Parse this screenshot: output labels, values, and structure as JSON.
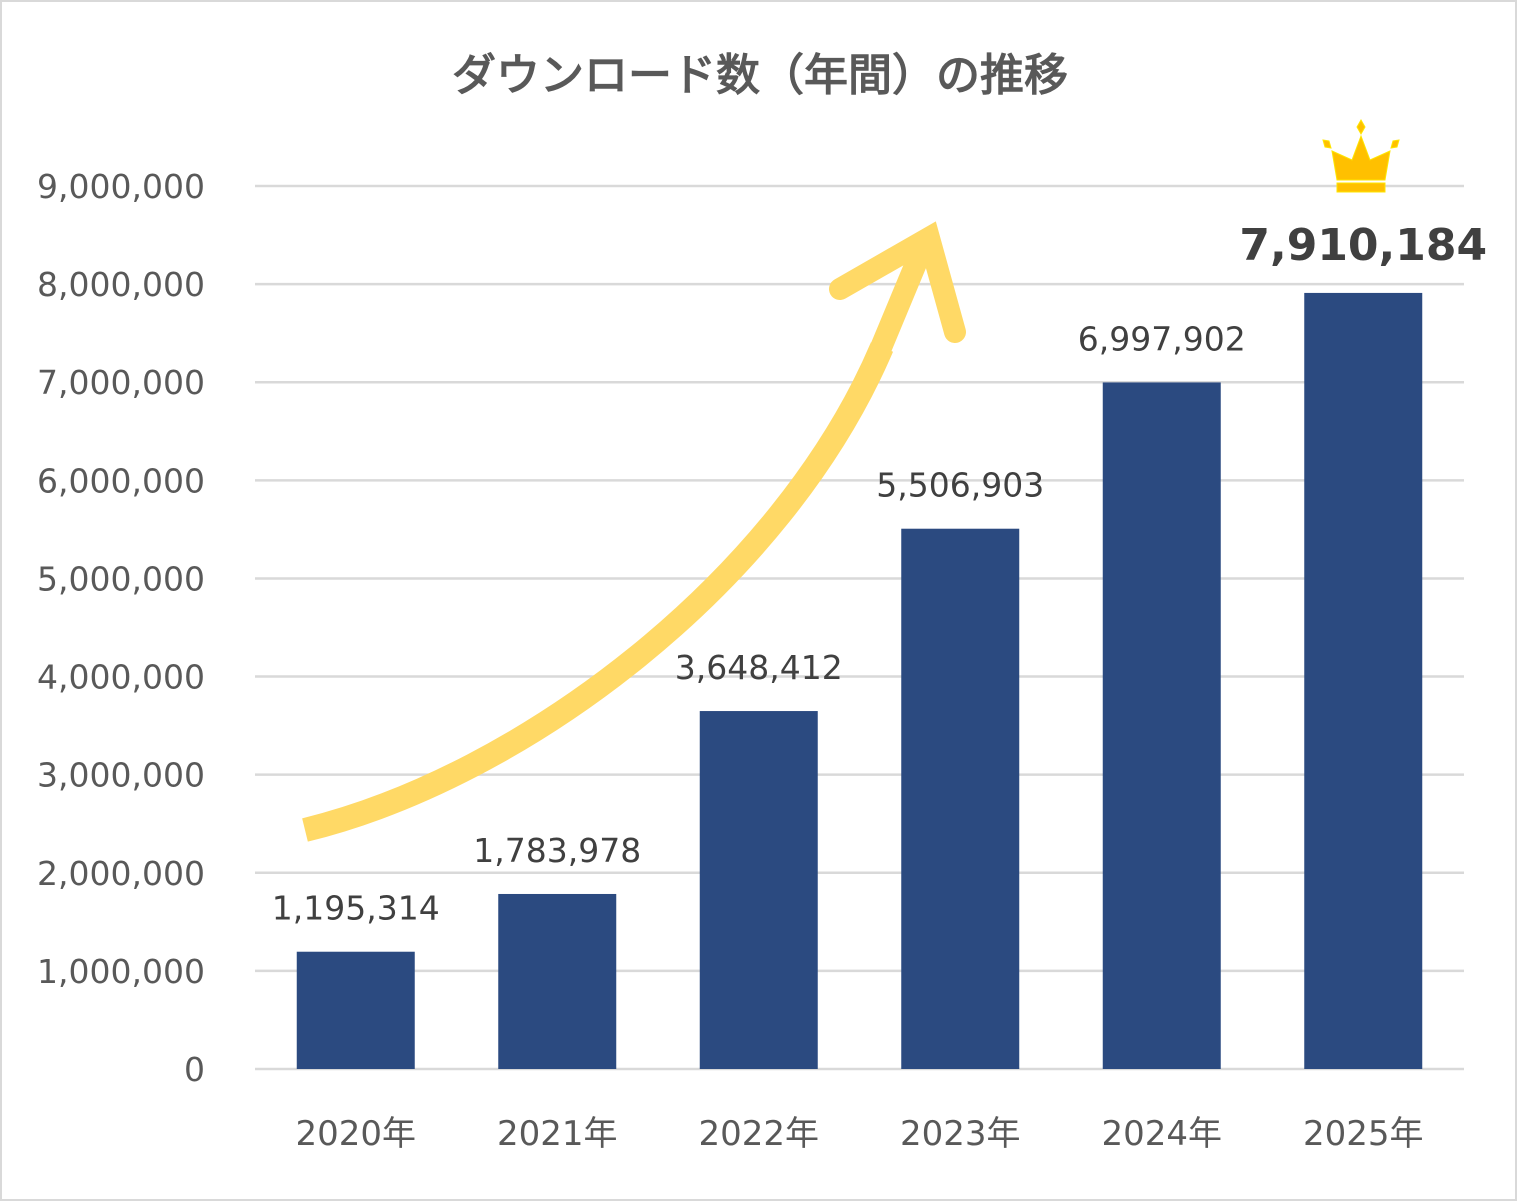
{
  "chart_data": {
    "type": "bar",
    "title": "ダウンロード数（年間）の推移",
    "categories": [
      "2020年",
      "2021年",
      "2022年",
      "2023年",
      "2024年",
      "2025年"
    ],
    "values": [
      1195314,
      1783978,
      3648412,
      5506903,
      6997902,
      7910184
    ],
    "data_labels": [
      "1,195,314",
      "1,783,978",
      "3,648,412",
      "5,506,903",
      "6,997,902",
      "7,910,184"
    ],
    "highlighted_label": "7,910,184",
    "y_ticks": [
      "0",
      "1,000,000",
      "2,000,000",
      "3,000,000",
      "4,000,000",
      "5,000,000",
      "6,000,000",
      "7,000,000",
      "8,000,000",
      "9,000,000"
    ],
    "ylim": [
      0,
      9000000
    ],
    "grid": true,
    "legend": "none",
    "annotations": [
      "upward-trend-arrow",
      "crown-icon above 2025年"
    ],
    "colors": {
      "bar": "#2b4a80",
      "arrow": "#ffd966",
      "crown": "#ffc000",
      "grid": "#d9d9d9",
      "text": "#595959",
      "label": "#404040"
    }
  }
}
